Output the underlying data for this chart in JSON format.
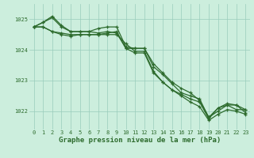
{
  "background_color": "#cceedd",
  "grid_color": "#99ccbb",
  "line_color": "#2d6b2d",
  "marker_color": "#2d6b2d",
  "xlabel": "Graphe pression niveau de la mer (hPa)",
  "xlabel_fontsize": 6.5,
  "xlabel_color": "#2d6b2d",
  "xticks": [
    0,
    1,
    2,
    3,
    4,
    5,
    6,
    7,
    8,
    9,
    10,
    11,
    12,
    13,
    14,
    15,
    16,
    17,
    18,
    19,
    20,
    21,
    22,
    23
  ],
  "yticks": [
    1022,
    1023,
    1024,
    1025
  ],
  "ylim": [
    1021.4,
    1025.5
  ],
  "xlim": [
    -0.5,
    23.5
  ],
  "series": [
    [
      1024.75,
      1024.9,
      1025.05,
      1024.75,
      1024.6,
      1024.6,
      1024.6,
      1024.55,
      1024.6,
      1024.55,
      1024.05,
      1024.05,
      1024.05,
      1023.55,
      1023.25,
      1022.95,
      1022.75,
      1022.6,
      1022.35,
      1021.8,
      1022.0,
      1022.2,
      1022.05,
      1022.05
    ],
    [
      1024.75,
      1024.9,
      1025.1,
      1024.8,
      1024.6,
      1024.6,
      1024.6,
      1024.7,
      1024.75,
      1024.75,
      1024.1,
      1024.05,
      1024.05,
      1023.45,
      1023.2,
      1022.9,
      1022.6,
      1022.5,
      1022.4,
      1021.8,
      1022.1,
      1022.25,
      1022.2,
      1022.05
    ],
    [
      1024.75,
      1024.75,
      1024.6,
      1024.55,
      1024.5,
      1024.5,
      1024.5,
      1024.5,
      1024.5,
      1024.5,
      1024.2,
      1023.95,
      1023.95,
      1023.3,
      1022.95,
      1022.7,
      1022.55,
      1022.4,
      1022.3,
      1021.75,
      1022.1,
      1022.2,
      1022.2,
      1021.95
    ],
    [
      1024.75,
      1024.75,
      1024.6,
      1024.5,
      1024.45,
      1024.5,
      1024.5,
      1024.5,
      1024.55,
      1024.6,
      1024.05,
      1023.9,
      1023.9,
      1023.25,
      1022.95,
      1022.7,
      1022.5,
      1022.3,
      1022.15,
      1021.7,
      1021.9,
      1022.05,
      1022.0,
      1021.9
    ]
  ],
  "line_width": 0.9,
  "tick_fontsize": 5.0,
  "tick_color": "#2d6b2d",
  "figwidth": 3.2,
  "figheight": 2.0,
  "dpi": 100
}
